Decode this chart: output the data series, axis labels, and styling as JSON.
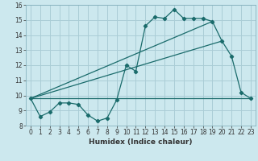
{
  "xlabel": "Humidex (Indice chaleur)",
  "bg_color": "#cce8ee",
  "line_color": "#1a6b6b",
  "grid_color": "#aacdd6",
  "xlim": [
    -0.5,
    23.5
  ],
  "ylim": [
    8,
    16
  ],
  "xticks": [
    0,
    1,
    2,
    3,
    4,
    5,
    6,
    7,
    8,
    9,
    10,
    11,
    12,
    13,
    14,
    15,
    16,
    17,
    18,
    19,
    20,
    21,
    22,
    23
  ],
  "yticks": [
    8,
    9,
    10,
    11,
    12,
    13,
    14,
    15,
    16
  ],
  "series1_x": [
    0,
    1,
    2,
    3,
    4,
    5,
    6,
    7,
    8,
    9,
    10,
    11,
    12,
    13,
    14,
    15,
    16,
    17,
    18,
    19,
    20,
    21,
    22,
    23
  ],
  "series1_y": [
    9.8,
    8.6,
    8.9,
    9.5,
    9.5,
    9.4,
    8.7,
    8.3,
    8.5,
    9.7,
    12.0,
    11.6,
    14.6,
    15.2,
    15.1,
    15.7,
    15.1,
    15.1,
    15.1,
    14.9,
    13.6,
    12.6,
    10.2,
    9.8
  ],
  "series2_x": [
    0,
    23
  ],
  "series2_y": [
    9.8,
    9.8
  ],
  "series3_x": [
    0,
    19
  ],
  "series3_y": [
    9.8,
    14.9
  ],
  "series4_x": [
    0,
    20
  ],
  "series4_y": [
    9.8,
    13.6
  ],
  "tick_fontsize": 5.5,
  "xlabel_fontsize": 6.5
}
